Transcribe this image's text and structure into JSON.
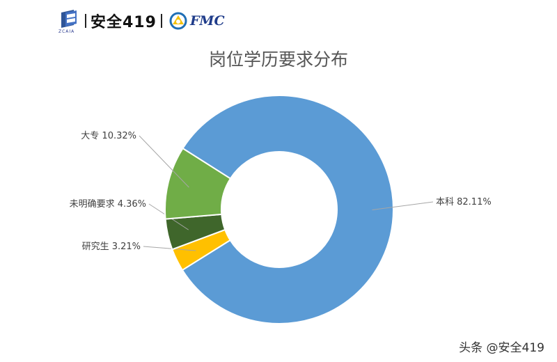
{
  "header": {
    "brand": "安全419",
    "logo_subtext": "ZCAIA",
    "fmc": "FMC"
  },
  "chart_data": {
    "type": "pie",
    "style": "donut",
    "title": "岗位学历要求分布",
    "slices": [
      {
        "label": "本科",
        "value": 82.11,
        "value_label": "82.11%",
        "color": "#5b9bd5"
      },
      {
        "label": "研究生",
        "value": 3.21,
        "value_label": "3.21%",
        "color": "#ffc000"
      },
      {
        "label": "未明确要求",
        "value": 4.36,
        "value_label": "4.36%",
        "color": "#3f662b"
      },
      {
        "label": "大专",
        "value": 10.32,
        "value_label": "10.32%",
        "color": "#70ad47"
      }
    ]
  },
  "watermark": "头条 @安全419"
}
